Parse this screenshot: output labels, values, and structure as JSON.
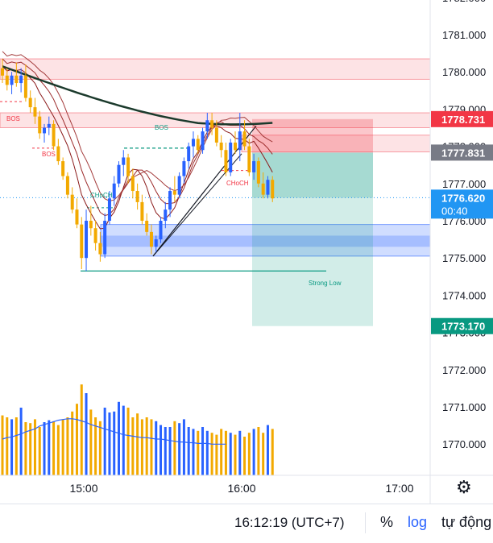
{
  "chart_data": {
    "type": "candlestick",
    "price_axis": {
      "ticks": [
        "1782.000",
        "1781.000",
        "1780.000",
        "1779.000",
        "1778.000",
        "1777.000",
        "1776.000",
        "1775.000",
        "1774.000",
        "1773.000",
        "1772.000",
        "1771.000",
        "1770.000"
      ],
      "range": [
        1769.2,
        1782.0
      ]
    },
    "time_axis": {
      "ticks": [
        "15:00",
        "16:00",
        "17:00"
      ]
    },
    "price_labels": [
      {
        "name": "stop-loss",
        "value": "1778.731",
        "color": "#f23645"
      },
      {
        "name": "entry",
        "value": "1777.831",
        "color": "#787b86"
      },
      {
        "name": "current",
        "value": "1776.620",
        "countdown": "00:40",
        "color": "#2196f3"
      },
      {
        "name": "take-profit",
        "value": "1773.170",
        "color": "#089981"
      }
    ],
    "annotations": [
      {
        "text": "BOS",
        "color": "#f23645"
      },
      {
        "text": "BOS",
        "color": "#f23645"
      },
      {
        "text": "CHoCH",
        "color": "#089981"
      },
      {
        "text": "BOS",
        "color": "#089981"
      },
      {
        "text": "CHoCH",
        "color": "#f23645"
      },
      {
        "text": "Strong Low",
        "color": "#089981"
      }
    ],
    "zones": [
      {
        "type": "supply",
        "low": 1779.8,
        "high": 1780.35
      },
      {
        "type": "supply",
        "low": 1778.5,
        "high": 1778.9
      },
      {
        "type": "supply",
        "low": 1777.85,
        "high": 1778.3
      },
      {
        "type": "demand",
        "low": 1775.05,
        "high": 1775.9
      }
    ],
    "position": {
      "type": "short",
      "entry": 1777.831,
      "stop": 1778.731,
      "target": 1773.17
    },
    "strong_low": 1774.65,
    "candles": [
      [
        1780.1,
        1780.35,
        1779.7,
        1779.9
      ],
      [
        1779.9,
        1780.1,
        1779.5,
        1779.65
      ],
      [
        1779.65,
        1780.0,
        1779.4,
        1779.9
      ],
      [
        1779.9,
        1780.25,
        1779.6,
        1779.7
      ],
      [
        1779.7,
        1780.1,
        1779.45,
        1779.9
      ],
      [
        1779.9,
        1780.2,
        1779.2,
        1779.3
      ],
      [
        1779.3,
        1779.5,
        1778.9,
        1779.05
      ],
      [
        1779.05,
        1779.3,
        1778.6,
        1778.8
      ],
      [
        1778.8,
        1778.95,
        1778.2,
        1778.35
      ],
      [
        1778.35,
        1778.6,
        1778.1,
        1778.5
      ],
      [
        1778.5,
        1778.8,
        1778.3,
        1778.6
      ],
      [
        1778.6,
        1778.7,
        1777.9,
        1778.0
      ],
      [
        1778.0,
        1778.2,
        1777.5,
        1777.6
      ],
      [
        1777.6,
        1777.7,
        1777.1,
        1777.2
      ],
      [
        1777.2,
        1777.3,
        1776.6,
        1776.7
      ],
      [
        1776.7,
        1776.9,
        1776.2,
        1776.3
      ],
      [
        1776.3,
        1776.6,
        1775.8,
        1775.9
      ],
      [
        1775.9,
        1776.1,
        1774.7,
        1775.0
      ],
      [
        1775.0,
        1776.3,
        1774.65,
        1776.0
      ],
      [
        1776.0,
        1776.4,
        1775.6,
        1775.8
      ],
      [
        1775.8,
        1776.0,
        1775.2,
        1775.4
      ],
      [
        1775.4,
        1775.7,
        1774.9,
        1775.1
      ],
      [
        1775.1,
        1776.2,
        1775.0,
        1776.0
      ],
      [
        1776.0,
        1776.8,
        1775.9,
        1776.6
      ],
      [
        1776.6,
        1777.2,
        1776.4,
        1777.0
      ],
      [
        1777.0,
        1777.6,
        1776.9,
        1777.5
      ],
      [
        1777.5,
        1777.9,
        1777.2,
        1777.7
      ],
      [
        1777.7,
        1777.8,
        1777.0,
        1777.2
      ],
      [
        1777.2,
        1777.4,
        1776.6,
        1776.8
      ],
      [
        1776.8,
        1777.0,
        1776.3,
        1776.5
      ],
      [
        1776.5,
        1776.7,
        1775.9,
        1776.0
      ],
      [
        1776.0,
        1776.2,
        1775.6,
        1775.7
      ],
      [
        1775.7,
        1775.9,
        1775.1,
        1775.3
      ],
      [
        1775.3,
        1775.6,
        1775.15,
        1775.5
      ],
      [
        1775.5,
        1776.1,
        1775.4,
        1776.0
      ],
      [
        1776.0,
        1776.5,
        1775.8,
        1776.3
      ],
      [
        1776.3,
        1776.9,
        1776.1,
        1776.8
      ],
      [
        1776.8,
        1777.2,
        1776.5,
        1776.7
      ],
      [
        1776.7,
        1777.3,
        1776.6,
        1777.2
      ],
      [
        1777.2,
        1777.7,
        1777.0,
        1777.6
      ],
      [
        1777.6,
        1778.1,
        1777.4,
        1778.0
      ],
      [
        1778.0,
        1778.4,
        1777.7,
        1778.2
      ],
      [
        1778.2,
        1778.3,
        1777.8,
        1777.9
      ],
      [
        1777.9,
        1778.5,
        1777.8,
        1778.4
      ],
      [
        1778.4,
        1778.9,
        1778.2,
        1778.7
      ],
      [
        1778.7,
        1778.9,
        1778.3,
        1778.5
      ],
      [
        1778.5,
        1778.7,
        1778.0,
        1778.1
      ],
      [
        1778.1,
        1778.3,
        1777.7,
        1777.9
      ],
      [
        1777.9,
        1778.1,
        1777.2,
        1777.3
      ],
      [
        1777.3,
        1778.2,
        1777.2,
        1778.1
      ],
      [
        1778.1,
        1778.4,
        1777.8,
        1777.9
      ],
      [
        1777.9,
        1778.9,
        1777.6,
        1778.4
      ],
      [
        1778.4,
        1778.7,
        1777.9,
        1778.0
      ],
      [
        1778.0,
        1778.2,
        1777.2,
        1777.3
      ],
      [
        1777.3,
        1777.8,
        1777.1,
        1777.6
      ],
      [
        1777.6,
        1777.7,
        1776.9,
        1777.0
      ],
      [
        1777.0,
        1777.3,
        1776.6,
        1776.7
      ],
      [
        1776.7,
        1777.2,
        1776.6,
        1777.1
      ],
      [
        1777.1,
        1777.2,
        1776.5,
        1776.6
      ]
    ],
    "volume": [
      62,
      60,
      58,
      60,
      70,
      55,
      54,
      58,
      50,
      55,
      57,
      56,
      52,
      58,
      60,
      66,
      74,
      94,
      85,
      68,
      60,
      56,
      70,
      65,
      66,
      76,
      72,
      70,
      60,
      64,
      58,
      60,
      58,
      56,
      52,
      50,
      50,
      56,
      54,
      58,
      50,
      48,
      46,
      50,
      46,
      44,
      42,
      48,
      46,
      44,
      42,
      46,
      40,
      44,
      48,
      50,
      44,
      52,
      48
    ],
    "volume_ma": [
      50,
      52,
      53,
      55,
      57,
      60,
      62,
      64,
      68,
      70,
      72,
      74,
      76,
      77,
      78,
      78,
      77,
      75,
      73,
      70,
      68,
      66,
      64,
      62,
      60,
      58,
      56,
      55,
      54,
      53,
      52,
      52,
      51,
      50,
      50,
      49,
      48,
      47,
      46,
      46,
      45,
      45,
      44,
      44,
      44,
      43,
      43,
      43,
      43
    ]
  }
}
